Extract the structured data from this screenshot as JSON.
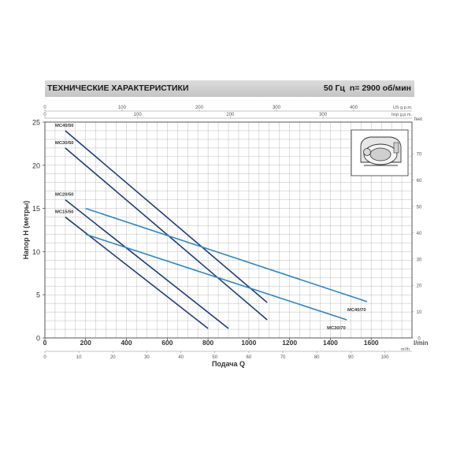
{
  "header": {
    "title": "ТЕХНИЧЕСКИЕ ХАРАКТЕРИСТИКИ",
    "frequency": "50 Гц",
    "speed": "n= 2900 об/мин"
  },
  "colors": {
    "dark_series": "#1e3f7a",
    "light_series": "#2d86c4",
    "grid": "#bcbcbc",
    "frame": "#555555"
  },
  "inset": {
    "icon": "pump-photo-icon"
  },
  "chart_data": {
    "type": "line",
    "xlabel": "Подача Q",
    "xunit": "l/min",
    "ylabel": "Напор H (метры)",
    "yright_unit": "feet",
    "xlim": [
      0,
      1800
    ],
    "ylim": [
      0,
      25
    ],
    "x_ticks": [
      0,
      200,
      400,
      600,
      800,
      1000,
      1200,
      1400,
      1600
    ],
    "y_ticks": [
      0,
      5,
      10,
      15,
      20,
      25
    ],
    "right_ticks": [
      0,
      10,
      20,
      30,
      40,
      50,
      60,
      70
    ],
    "top_usgpm": {
      "unit": "US g.p.m.",
      "ticks": [
        0,
        100,
        200,
        300,
        400
      ]
    },
    "top_impgpm": {
      "unit": "Imp g.p.m.",
      "ticks": [
        0,
        100,
        200,
        300
      ]
    },
    "bottom_m3h": {
      "unit": "m³/h",
      "ticks": [
        0,
        10,
        20,
        30,
        40,
        50,
        60,
        70,
        80,
        90,
        100
      ]
    },
    "series": [
      {
        "name": "MC40/50",
        "color": "#1e3f7a",
        "label_side": "start",
        "points": [
          [
            100,
            24
          ],
          [
            1090,
            4.1
          ]
        ]
      },
      {
        "name": "MC30/50",
        "color": "#1e3f7a",
        "label_side": "start",
        "points": [
          [
            100,
            22
          ],
          [
            1090,
            2.1
          ]
        ]
      },
      {
        "name": "MC20/50",
        "color": "#1e3f7a",
        "label_side": "start",
        "points": [
          [
            100,
            16
          ],
          [
            900,
            1.1
          ]
        ]
      },
      {
        "name": "MC15/50",
        "color": "#1e3f7a",
        "label_side": "start",
        "points": [
          [
            100,
            14
          ],
          [
            800,
            1.1
          ]
        ]
      },
      {
        "name": "MC40/70",
        "color": "#2d86c4",
        "label_side": "end",
        "points": [
          [
            200,
            15
          ],
          [
            1580,
            4.2
          ]
        ]
      },
      {
        "name": "MC30/70",
        "color": "#2d86c4",
        "label_side": "end",
        "points": [
          [
            200,
            12
          ],
          [
            1480,
            2.1
          ]
        ]
      }
    ]
  }
}
